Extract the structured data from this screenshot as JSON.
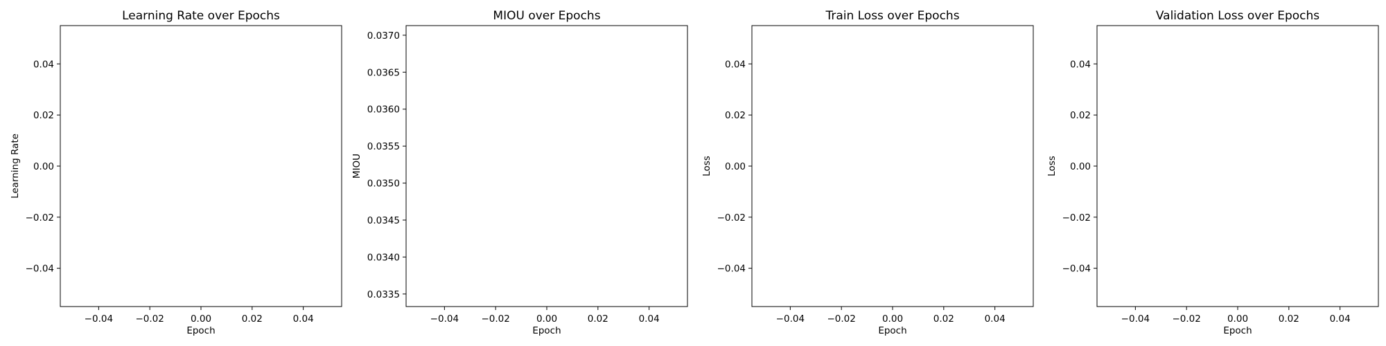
{
  "chart_data": [
    {
      "type": "line",
      "title": "Learning Rate over Epochs",
      "xlabel": "Epoch",
      "ylabel": "Learning Rate",
      "xlim": [
        -0.055,
        0.055
      ],
      "ylim": [
        -0.055,
        0.055
      ],
      "xticks": [
        -0.04,
        -0.02,
        0.0,
        0.02,
        0.04
      ],
      "xtick_labels": [
        "−0.04",
        "−0.02",
        "0.00",
        "0.02",
        "0.04"
      ],
      "yticks": [
        -0.04,
        -0.02,
        0.0,
        0.02,
        0.04
      ],
      "ytick_labels": [
        "−0.04",
        "−0.02",
        "0.00",
        "0.02",
        "0.04"
      ],
      "grid": false,
      "series": [
        {
          "x": [],
          "y": []
        }
      ]
    },
    {
      "type": "line",
      "title": "MIOU over Epochs",
      "xlabel": "Epoch",
      "ylabel": "MIOU",
      "xlim": [
        -0.055,
        0.055
      ],
      "ylim": [
        0.03333,
        0.03713
      ],
      "xticks": [
        -0.04,
        -0.02,
        0.0,
        0.02,
        0.04
      ],
      "xtick_labels": [
        "−0.04",
        "−0.02",
        "0.00",
        "0.02",
        "0.04"
      ],
      "yticks": [
        0.0335,
        0.034,
        0.0345,
        0.035,
        0.0355,
        0.036,
        0.0365,
        0.037
      ],
      "ytick_labels": [
        "0.0335",
        "0.0340",
        "0.0345",
        "0.0350",
        "0.0355",
        "0.0360",
        "0.0365",
        "0.0370"
      ],
      "grid": false,
      "series": [
        {
          "x": [],
          "y": []
        }
      ]
    },
    {
      "type": "line",
      "title": "Train Loss over Epochs",
      "xlabel": "Epoch",
      "ylabel": "Loss",
      "xlim": [
        -0.055,
        0.055
      ],
      "ylim": [
        -0.055,
        0.055
      ],
      "xticks": [
        -0.04,
        -0.02,
        0.0,
        0.02,
        0.04
      ],
      "xtick_labels": [
        "−0.04",
        "−0.02",
        "0.00",
        "0.02",
        "0.04"
      ],
      "yticks": [
        -0.04,
        -0.02,
        0.0,
        0.02,
        0.04
      ],
      "ytick_labels": [
        "−0.04",
        "−0.02",
        "0.00",
        "0.02",
        "0.04"
      ],
      "grid": false,
      "series": [
        {
          "x": [],
          "y": []
        }
      ]
    },
    {
      "type": "line",
      "title": "Validation Loss over Epochs",
      "xlabel": "Epoch",
      "ylabel": "Loss",
      "xlim": [
        -0.055,
        0.055
      ],
      "ylim": [
        -0.055,
        0.055
      ],
      "xticks": [
        -0.04,
        -0.02,
        0.0,
        0.02,
        0.04
      ],
      "xtick_labels": [
        "−0.04",
        "−0.02",
        "0.00",
        "0.02",
        "0.04"
      ],
      "yticks": [
        -0.04,
        -0.02,
        0.0,
        0.02,
        0.04
      ],
      "ytick_labels": [
        "−0.04",
        "−0.02",
        "0.00",
        "0.02",
        "0.04"
      ],
      "grid": false,
      "series": [
        {
          "x": [],
          "y": []
        }
      ]
    }
  ]
}
